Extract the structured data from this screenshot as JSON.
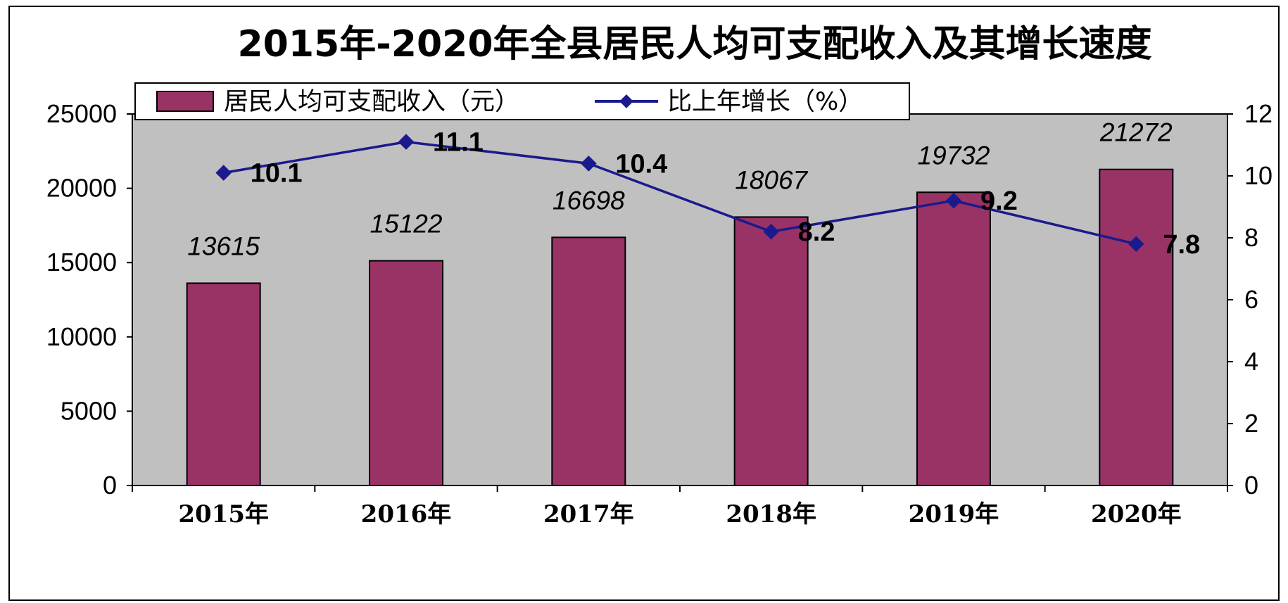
{
  "chart_data": {
    "type": "bar",
    "title": "2015年-2020年全县居民人均可支配收入及其增长速度",
    "categories": [
      "2015年",
      "2016年",
      "2017年",
      "2018年",
      "2019年",
      "2020年"
    ],
    "series": [
      {
        "name": "居民人均可支配收入（元）",
        "type": "bar",
        "axis": "left",
        "values": [
          13615,
          15122,
          16698,
          18067,
          19732,
          21272
        ]
      },
      {
        "name": "比上年增长（%）",
        "type": "line",
        "axis": "right",
        "values": [
          10.1,
          11.1,
          10.4,
          8.2,
          9.2,
          7.8
        ]
      }
    ],
    "y_left": {
      "lim": [
        0,
        25000
      ],
      "ticks": [
        "0",
        "5000",
        "10000",
        "15000",
        "20000",
        "25000"
      ]
    },
    "y_right": {
      "lim": [
        0,
        12
      ],
      "ticks": [
        "0",
        "2",
        "4",
        "6",
        "8",
        "10",
        "12"
      ]
    },
    "grid": false,
    "legend_position": "top-left",
    "colors": {
      "bar": "#993366",
      "line": "#1a1a8c",
      "plot_bg": "#c0c0c0"
    }
  }
}
